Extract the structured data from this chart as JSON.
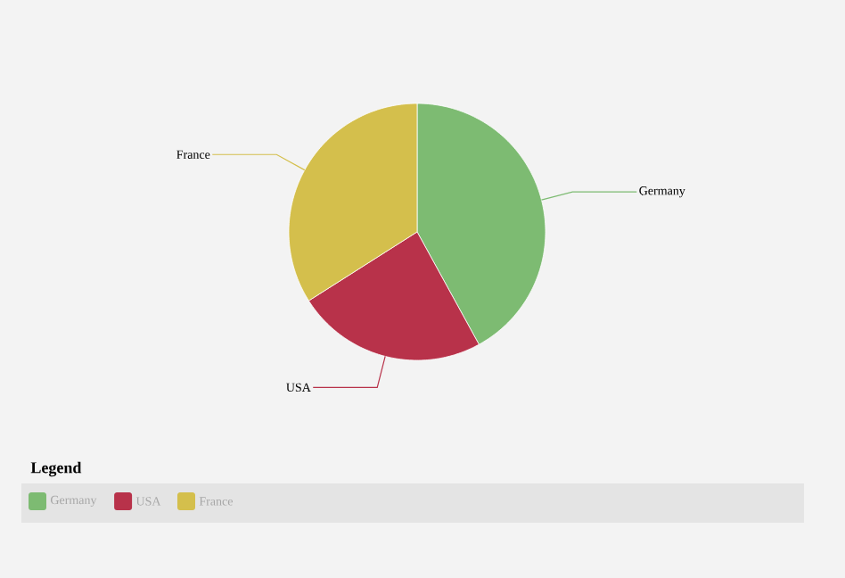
{
  "chart_data": {
    "type": "pie",
    "categories": [
      "Germany",
      "USA",
      "France"
    ],
    "values": [
      42,
      24,
      34
    ],
    "colors": [
      "#7dbb72",
      "#b8324a",
      "#d4bf4c"
    ],
    "legend": "bottom",
    "legend_title": "Legend"
  }
}
